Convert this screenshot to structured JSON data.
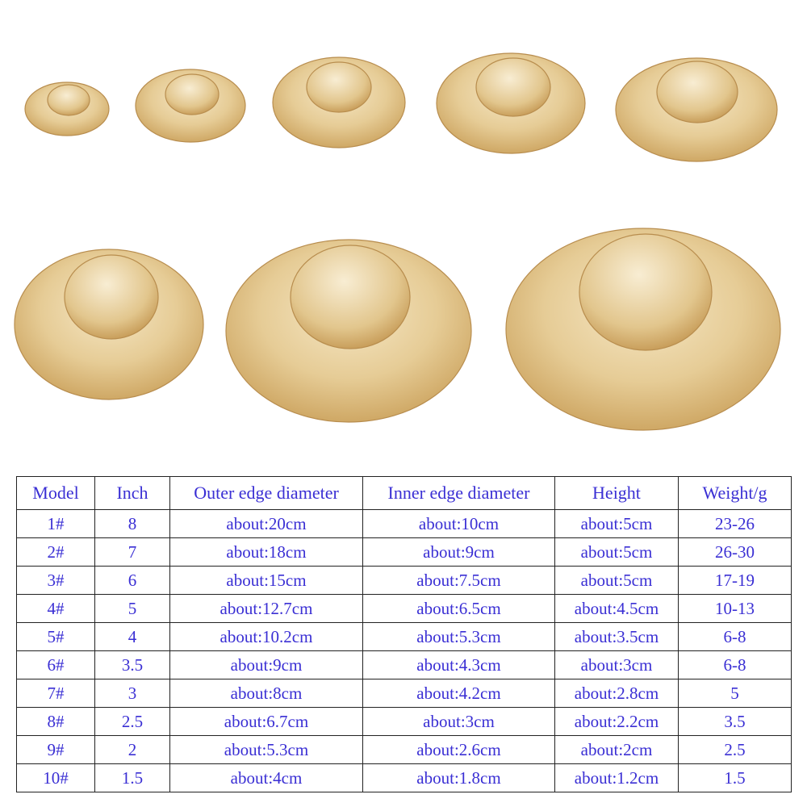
{
  "table": {
    "header": [
      "Model",
      "Inch",
      "Outer edge diameter",
      "Inner edge diameter",
      "Height",
      "Weight/g"
    ],
    "rows": [
      [
        "1#",
        "8",
        "about:20cm",
        "about:10cm",
        "about:5cm",
        "23-26"
      ],
      [
        "2#",
        "7",
        "about:18cm",
        "about:9cm",
        "about:5cm",
        "26-30"
      ],
      [
        "3#",
        "6",
        "about:15cm",
        "about:7.5cm",
        "about:5cm",
        "17-19"
      ],
      [
        "4#",
        "5",
        "about:12.7cm",
        "about:6.5cm",
        "about:4.5cm",
        "10-13"
      ],
      [
        "5#",
        "4",
        "about:10.2cm",
        "about:5.3cm",
        "about:3.5cm",
        "6-8"
      ],
      [
        "6#",
        "3.5",
        "about:9cm",
        "about:4.3cm",
        "about:3cm",
        "6-8"
      ],
      [
        "7#",
        "3",
        "about:8cm",
        "about:4.2cm",
        "about:2.8cm",
        "5"
      ],
      [
        "8#",
        "2.5",
        "about:6.7cm",
        "about:3cm",
        "about:2.2cm",
        "3.5"
      ],
      [
        "9#",
        "2",
        "about:5.3cm",
        "about:2.6cm",
        "about:2cm",
        "2.5"
      ],
      [
        "10#",
        "1.5",
        "about:4cm",
        "about:1.8cm",
        "about:1.2cm",
        "1.5"
      ]
    ]
  }
}
